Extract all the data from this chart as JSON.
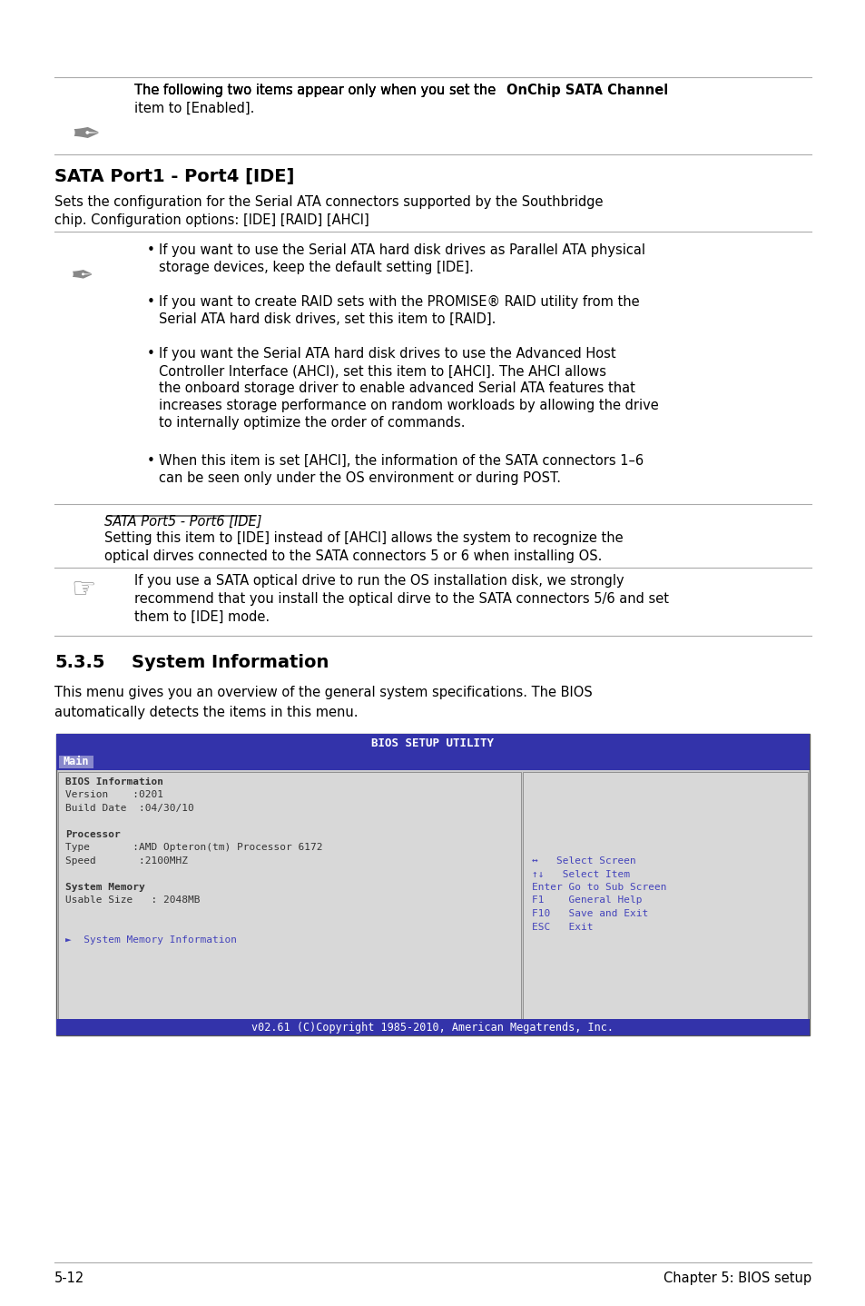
{
  "page_bg": "#ffffff",
  "title_bar_color": "#3333aa",
  "bios_menu_bg": "#cccccc",
  "bios_left_bg": "#dddddd",
  "bios_right_bg": "#cccccc",
  "bios_header_text": "BIOS SETUP UTILITY",
  "bios_tab_text": "Main",
  "bios_tab_bg": "#aaaadd",
  "bios_footer_text": "v02.61 (C)Copyright 1985-2010, American Megatrends, Inc.",
  "bios_footer_bg": "#3333aa",
  "section1_heading": "SATA Port1 - Port4 [IDE]",
  "section2_heading": "5.3.5    System Information",
  "note1_text": "The following two items appear only when you set the OnChip SATA Channel item to [Enabled].",
  "note1_bold": "OnChip SATA Channel",
  "sata_desc": "Sets the configuration for the Serial ATA connectors supported by the Southbridge chip. Configuration options: [IDE] [RAID] [AHCI]",
  "bullet1": "If you want to use the Serial ATA hard disk drives as Parallel ATA physical storage devices, keep the default setting [IDE].",
  "bullet2": "If you want to create RAID sets with the PROMISE® RAID utility from the Serial ATA hard disk drives, set this item to [RAID].",
  "bullet3": "If you want the Serial ATA hard disk drives to use the Advanced Host Controller Interface (AHCI), set this item to [AHCI]. The AHCI allows the onboard storage driver to enable advanced Serial ATA features that increases storage performance on random workloads by allowing the drive to internally optimize the order of commands.",
  "bullet4": "When this item is set [AHCI], the information of the SATA connectors 1–6 can be seen only under the OS environment or during POST.",
  "sata56_heading": "SATA Port5 - Port6 [IDE]",
  "sata56_desc": "Setting this item to [IDE] instead of [AHCI] allows the system to recognize the optical dirves connected to the SATA connectors 5 or 6 when installing OS.",
  "note2_text": "If you use a SATA optical drive to run the OS installation disk, we strongly recommend that you install the optical dirve to the SATA connectors 5/6 and set them to [IDE] mode.",
  "sys_info_desc": "This menu gives you an overview of the general system specifications. The BIOS automatically detects the items in this menu.",
  "footer_left": "5-12",
  "footer_right": "Chapter 5: BIOS setup",
  "bios_content_lines": [
    {
      "text": "BIOS Information",
      "bold": true,
      "indent": 0
    },
    {
      "text": "Version    :0201",
      "bold": false,
      "indent": 0
    },
    {
      "text": "Build Date  :04/30/10",
      "bold": false,
      "indent": 0
    },
    {
      "text": "",
      "bold": false,
      "indent": 0
    },
    {
      "text": "Processor",
      "bold": true,
      "indent": 0
    },
    {
      "text": "Type       :AMD Opteron(tm) Processor 6172",
      "bold": false,
      "indent": 0
    },
    {
      "text": "Speed       :2100MHZ",
      "bold": false,
      "indent": 0
    },
    {
      "text": "",
      "bold": false,
      "indent": 0
    },
    {
      "text": "System Memory",
      "bold": true,
      "indent": 0
    },
    {
      "text": "Usable Size   : 2048MB",
      "bold": false,
      "indent": 0
    },
    {
      "text": "",
      "bold": false,
      "indent": 0
    },
    {
      "text": "",
      "bold": false,
      "indent": 0
    },
    {
      "text": "►  System Memory Information",
      "bold": false,
      "indent": 0,
      "color": "#4444cc"
    }
  ],
  "bios_right_lines": [
    {
      "text": "↔   Select Screen",
      "color": "#4444cc"
    },
    {
      "text": "↑↓   Select Item",
      "color": "#4444cc"
    },
    {
      "text": "Enter Go to Sub Screen",
      "color": "#4444cc"
    },
    {
      "text": "F1    General Help",
      "color": "#4444cc"
    },
    {
      "text": "F10   Save and Exit",
      "color": "#4444cc"
    },
    {
      "text": "ESC   Exit",
      "color": "#4444cc"
    }
  ]
}
